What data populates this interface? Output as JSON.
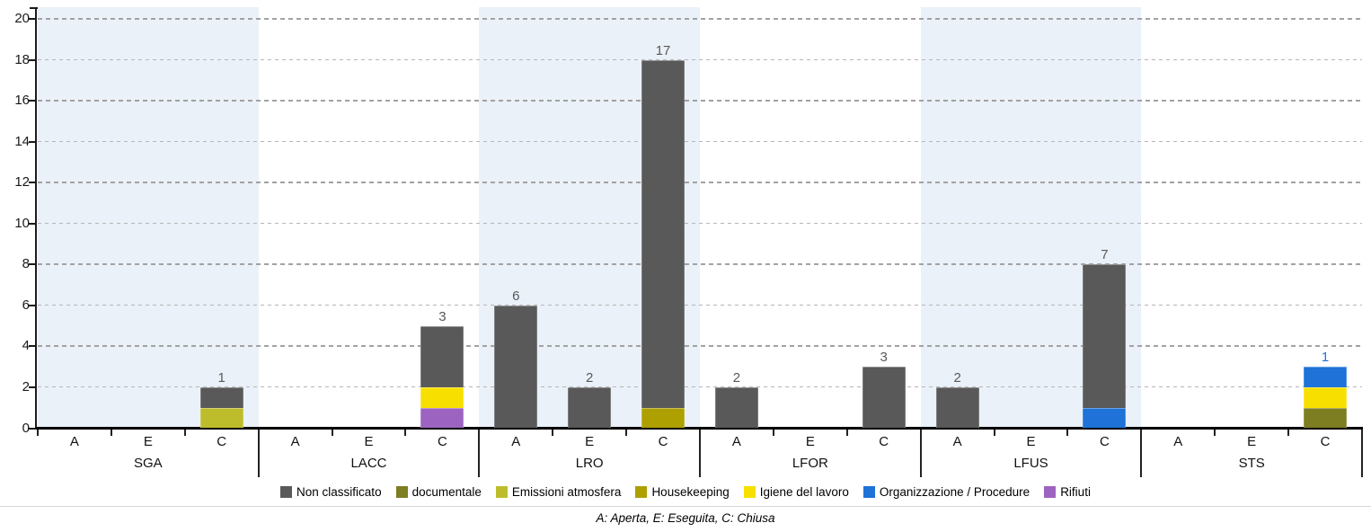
{
  "chart_data": {
    "type": "bar",
    "stacked": true,
    "title": "",
    "xlabel": "",
    "ylabel": "",
    "ylim": [
      0,
      20
    ],
    "yticks": [
      0,
      2,
      4,
      6,
      8,
      10,
      12,
      14,
      16,
      18,
      20
    ],
    "grid": "horizontal-dashed",
    "legend_position": "bottom",
    "status_labels": [
      "A",
      "E",
      "C"
    ],
    "series": [
      {
        "name": "Non classificato",
        "color": "#595959"
      },
      {
        "name": "documentale",
        "color": "#7d7d22"
      },
      {
        "name": "Emissioni atmosfera",
        "color": "#bdbd2c"
      },
      {
        "name": "Housekeeping",
        "color": "#ada000"
      },
      {
        "name": "Igiene del lavoro",
        "color": "#f7e000"
      },
      {
        "name": "Organizzazione / Procedure",
        "color": "#1e72d8"
      },
      {
        "name": "Rifiuti",
        "color": "#9c64c0"
      }
    ],
    "groups": [
      {
        "label": "SGA",
        "bars": [
          {
            "status": "A",
            "segments": []
          },
          {
            "status": "E",
            "segments": []
          },
          {
            "status": "C",
            "segments": [
              {
                "series": "Emissioni atmosfera",
                "value": 1
              },
              {
                "series": "Non classificato",
                "value": 1
              }
            ]
          }
        ]
      },
      {
        "label": "LACC",
        "bars": [
          {
            "status": "A",
            "segments": []
          },
          {
            "status": "E",
            "segments": []
          },
          {
            "status": "C",
            "segments": [
              {
                "series": "Rifiuti",
                "value": 1
              },
              {
                "series": "Igiene del lavoro",
                "value": 1
              },
              {
                "series": "Non classificato",
                "value": 3
              }
            ]
          }
        ]
      },
      {
        "label": "LRO",
        "bars": [
          {
            "status": "A",
            "segments": [
              {
                "series": "Non classificato",
                "value": 6
              }
            ]
          },
          {
            "status": "E",
            "segments": [
              {
                "series": "Non classificato",
                "value": 2
              }
            ]
          },
          {
            "status": "C",
            "segments": [
              {
                "series": "Housekeeping",
                "value": 1
              },
              {
                "series": "Non classificato",
                "value": 17
              }
            ]
          }
        ]
      },
      {
        "label": "LFOR",
        "bars": [
          {
            "status": "A",
            "segments": [
              {
                "series": "Non classificato",
                "value": 2
              }
            ]
          },
          {
            "status": "E",
            "segments": []
          },
          {
            "status": "C",
            "segments": [
              {
                "series": "Non classificato",
                "value": 3
              }
            ]
          }
        ]
      },
      {
        "label": "LFUS",
        "bars": [
          {
            "status": "A",
            "segments": [
              {
                "series": "Non classificato",
                "value": 2
              }
            ]
          },
          {
            "status": "E",
            "segments": []
          },
          {
            "status": "C",
            "segments": [
              {
                "series": "Organizzazione / Procedure",
                "value": 1
              },
              {
                "series": "Non classificato",
                "value": 7
              }
            ]
          }
        ]
      },
      {
        "label": "STS",
        "bars": [
          {
            "status": "A",
            "segments": []
          },
          {
            "status": "E",
            "segments": []
          },
          {
            "status": "C",
            "segments": [
              {
                "series": "documentale",
                "value": 1
              },
              {
                "series": "Igiene del lavoro",
                "value": 1
              },
              {
                "series": "Organizzazione / Procedure",
                "value": 1
              }
            ]
          }
        ]
      }
    ],
    "style": {
      "stripe_color": "#ebf1f8",
      "grid_major_color": "#a2a2a2",
      "grid_minor_color": "#b6b6b6",
      "axis_color": "#000000",
      "divider_color": "#d6d6d6"
    },
    "footnote": "A: Aperta, E: Eseguita, C: Chiusa"
  }
}
